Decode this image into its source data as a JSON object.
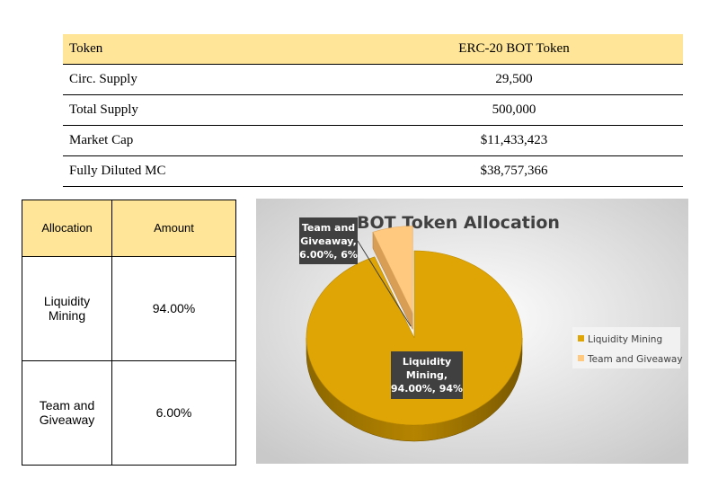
{
  "token_table": {
    "header": {
      "label": "Token",
      "value": "ERC-20 BOT Token"
    },
    "rows": [
      {
        "label": "Circ. Supply",
        "value": "29,500"
      },
      {
        "label": "Total Supply",
        "value": "500,000"
      },
      {
        "label": "Market Cap",
        "value": "$11,433,423"
      },
      {
        "label": "Fully Diluted MC",
        "value": "$38,757,366"
      }
    ]
  },
  "allocation_table": {
    "headers": [
      "Allocation",
      "Amount"
    ],
    "rows": [
      {
        "allocation": "Liquidity Mining",
        "amount": "94.00%"
      },
      {
        "allocation": "Team and Giveaway",
        "amount": "6.00%"
      }
    ]
  },
  "chart_data": {
    "type": "pie",
    "title": "BOT Token Allocation",
    "slices": [
      {
        "name": "Liquidity Mining",
        "value": 94,
        "color": "#dfa505",
        "label_lines": [
          "Liquidity",
          "Mining,",
          "94.00%, 94%"
        ]
      },
      {
        "name": "Team and Giveaway",
        "value": 6,
        "color": "#ffca80",
        "label_lines": [
          "Team and",
          "Giveaway,",
          "6.00%, 6%"
        ]
      }
    ],
    "legend": [
      "Liquidity Mining",
      "Team and Giveaway"
    ],
    "legend_position": "right",
    "style": "3d-exploded",
    "panel_background": "#e6e6e6"
  }
}
